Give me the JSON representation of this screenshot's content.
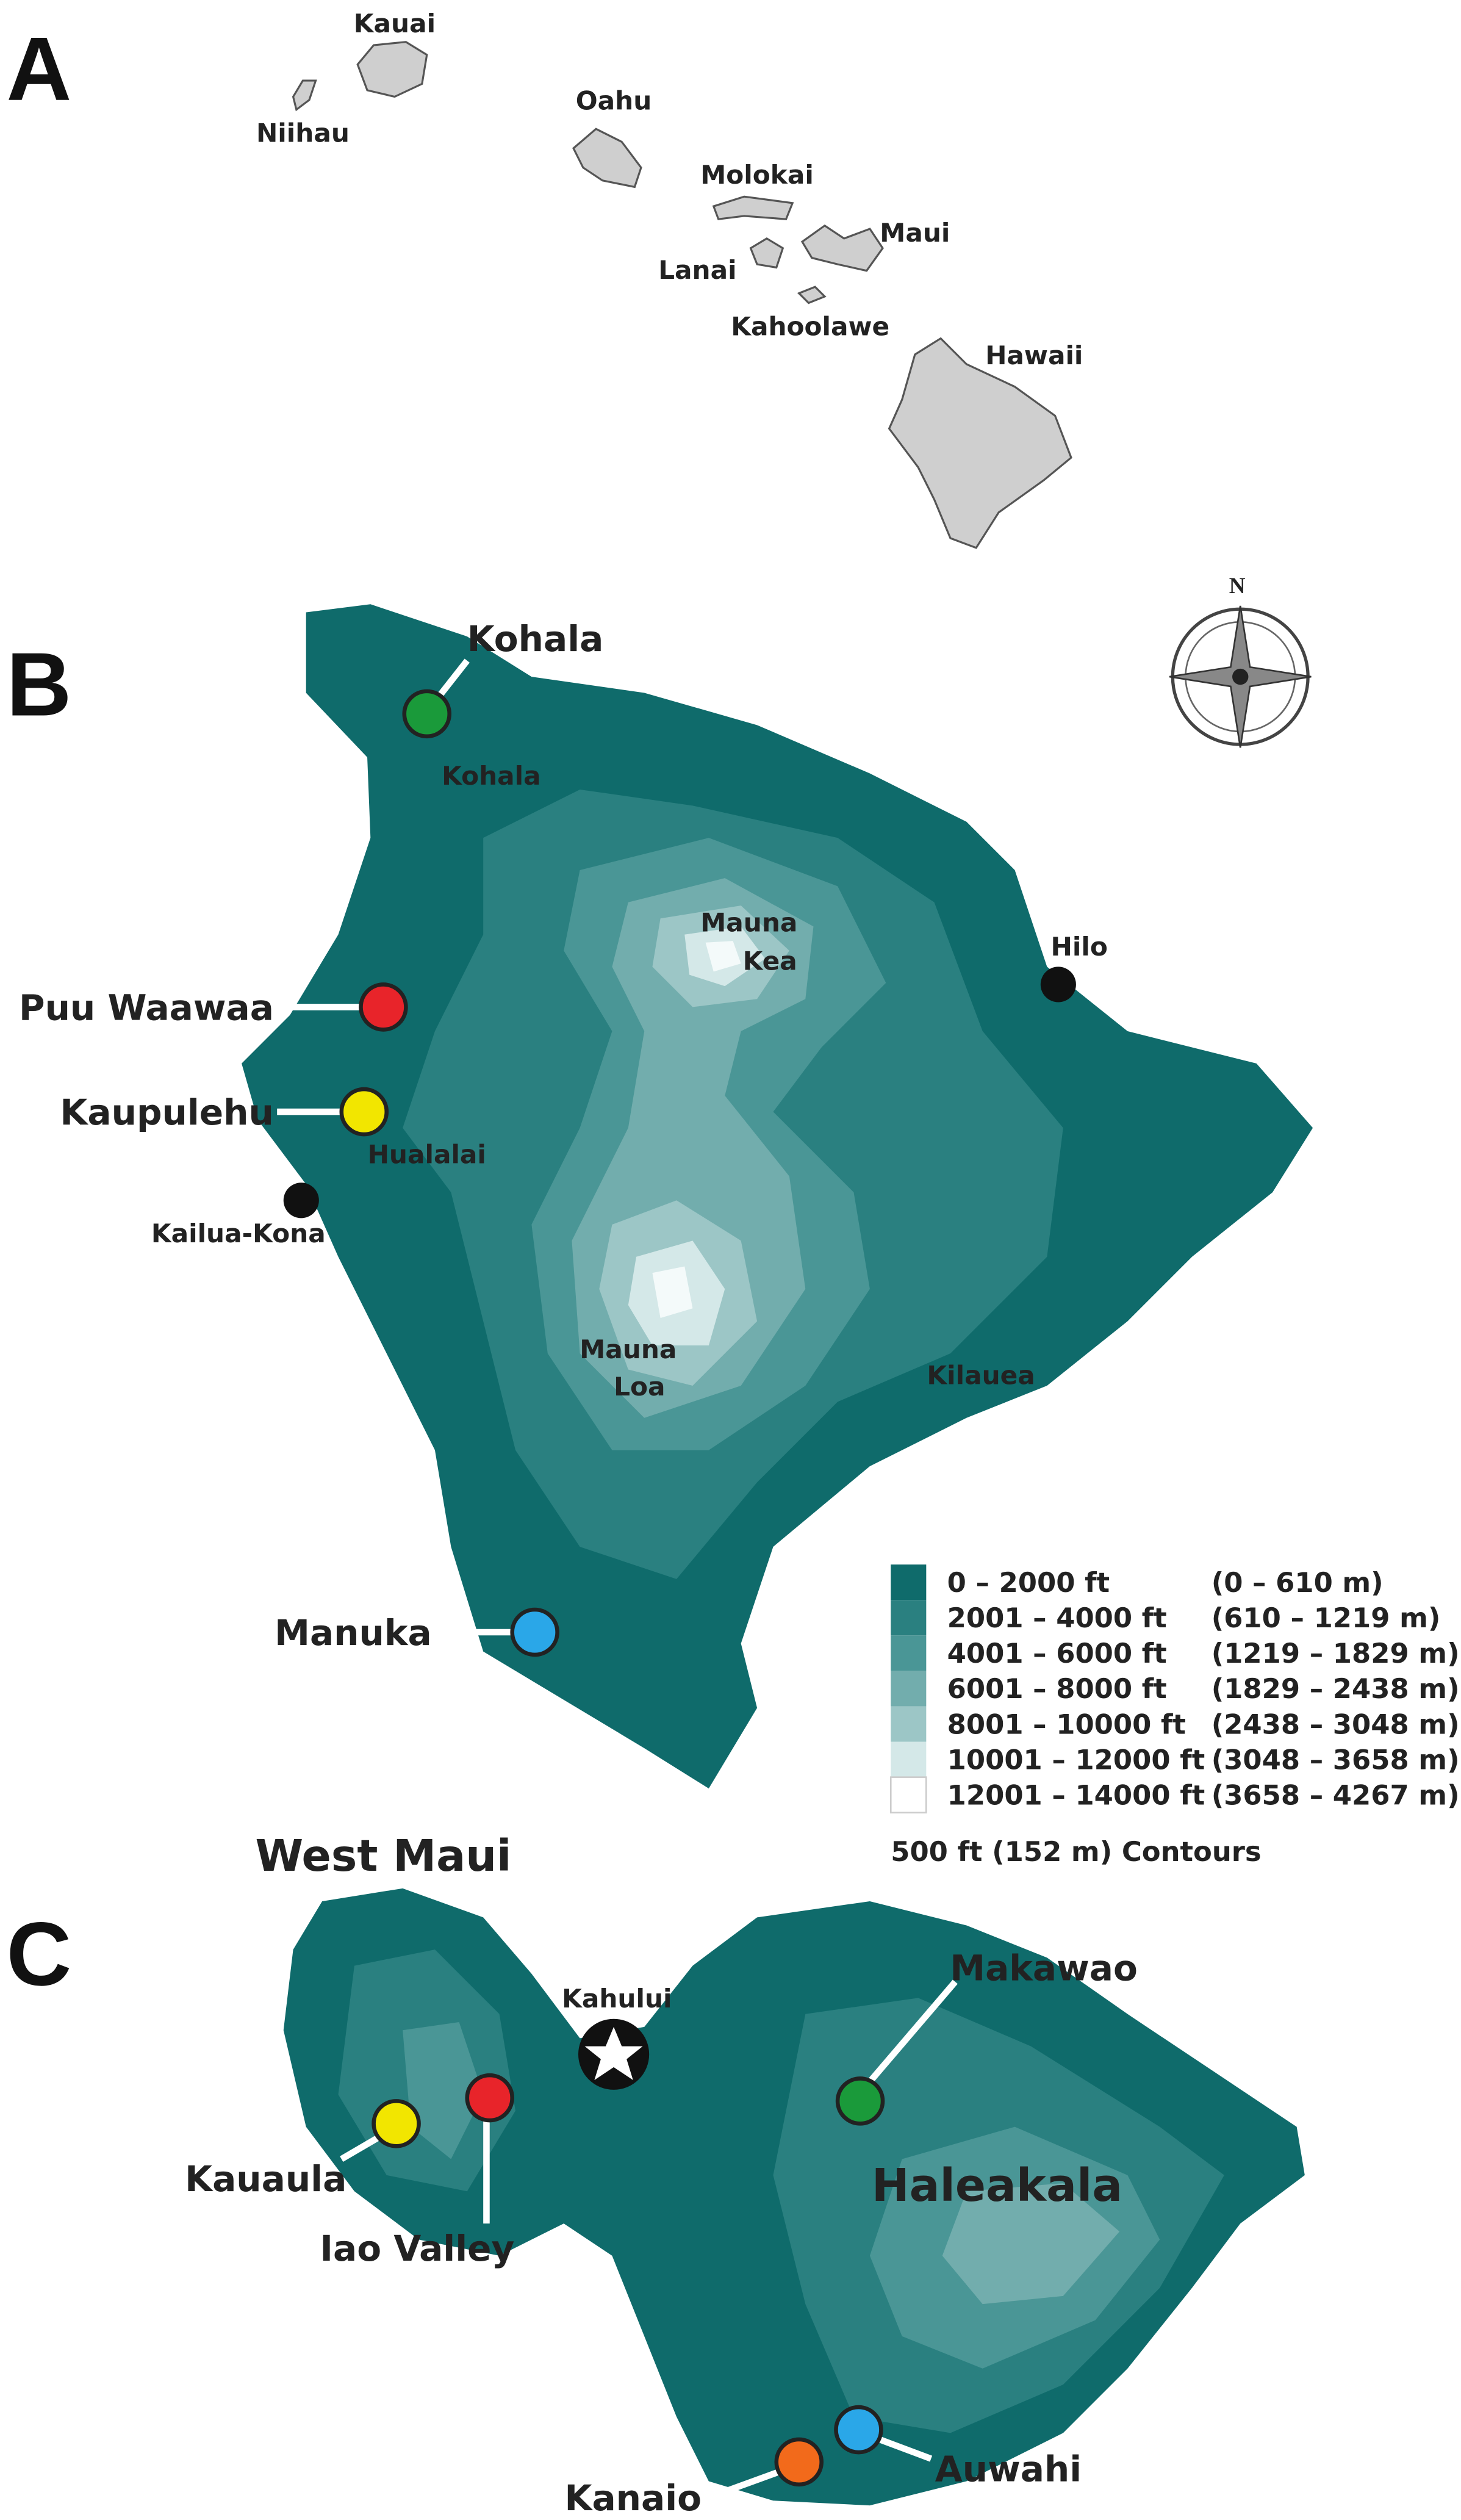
{
  "panels": [
    {
      "letter": "A",
      "labels": [
        "Kauai",
        "Niihau",
        "Oahu",
        "Molokai",
        "Maui",
        "Lanai",
        "Kahoolawe",
        "Hawaii"
      ]
    },
    {
      "letter": "B",
      "compass": "N",
      "sites": [
        "Kohala",
        "Puu Waawaa",
        "Kaupulehu",
        "Manuka"
      ],
      "places": [
        "Kohala",
        "Mauna",
        "Kea",
        "Hilo",
        "Hualalai",
        "Kailua-Kona",
        "Mauna",
        "Loa",
        "Kilauea"
      ],
      "legend": {
        "rows": [
          {
            "range": "0 – 2000 ft",
            "metric": "(0 – 610 m)"
          },
          {
            "range": "2001 – 4000 ft",
            "metric": "(610 – 1219 m)"
          },
          {
            "range": "4001 – 6000 ft",
            "metric": "(1219 – 1829 m)"
          },
          {
            "range": "6001 – 8000 ft",
            "metric": "(1829 – 2438 m)"
          },
          {
            "range": "8001 – 10000 ft",
            "metric": "(2438 – 3048 m)"
          },
          {
            "range": "10001 – 12000 ft",
            "metric": "(3048 – 3658 m)"
          },
          {
            "range": "12001 – 14000 ft",
            "metric": "(3658 – 4267 m)"
          }
        ],
        "note": "500 ft (152 m) Contours"
      }
    },
    {
      "letter": "C",
      "title": "West Maui",
      "sites": [
        "Makawao",
        "Kauaula",
        "Iao Valley",
        "Kanaio",
        "Auwahi"
      ],
      "places": [
        "Kahului",
        "Haleakala"
      ]
    }
  ]
}
